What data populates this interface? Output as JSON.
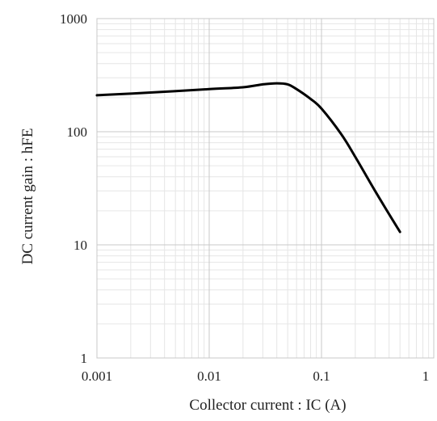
{
  "chart_data": {
    "type": "line",
    "title": "",
    "xlabel": "Collector current : IC (A)",
    "ylabel": "DC current gain : hFE",
    "xscale": "log",
    "yscale": "log",
    "xlim": [
      0.001,
      1
    ],
    "ylim": [
      1,
      1000
    ],
    "grid": true,
    "legend": "none",
    "x_ticks": [
      0.001,
      0.01,
      0.1,
      1
    ],
    "x_tick_labels": [
      "0.001",
      "0.01",
      "0.1",
      "1"
    ],
    "y_ticks": [
      1,
      10,
      100,
      1000
    ],
    "y_tick_labels": [
      "1",
      "10",
      "100",
      "1000"
    ],
    "series": [
      {
        "color": "#000000",
        "x": [
          0.001,
          0.003,
          0.01,
          0.02,
          0.03,
          0.04,
          0.05,
          0.06,
          0.08,
          0.1,
          0.15,
          0.2,
          0.3,
          0.5
        ],
        "y": [
          210,
          222,
          238,
          247,
          262,
          268,
          262,
          238,
          195,
          160,
          95,
          60,
          30,
          13
        ]
      }
    ]
  }
}
